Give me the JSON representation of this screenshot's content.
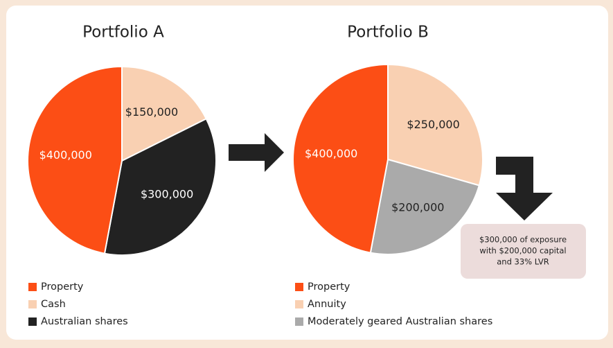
{
  "chart_data": [
    {
      "type": "pie",
      "title": "Portfolio A",
      "categories": [
        "Cash",
        "Australian shares",
        "Property"
      ],
      "values": [
        150000,
        300000,
        400000
      ],
      "value_labels": [
        "$150,000",
        "$300,000",
        "$400,000"
      ],
      "colors": [
        "#f9d0b2",
        "#222222",
        "#fc4e15"
      ],
      "legend_order": [
        2,
        0,
        1
      ]
    },
    {
      "type": "pie",
      "title": "Portfolio B",
      "categories": [
        "Annuity",
        "Moderately geared Australian shares",
        "Property"
      ],
      "values": [
        250000,
        200000,
        400000
      ],
      "value_labels": [
        "$250,000",
        "$200,000",
        "$400,000"
      ],
      "colors": [
        "#f9d0b2",
        "#aaaaaa",
        "#fc4e15"
      ],
      "legend_order": [
        2,
        0,
        1
      ],
      "annotation": [
        "$300,000 of exposure",
        "with $200,000 capital",
        "and 33% LVR"
      ]
    }
  ]
}
